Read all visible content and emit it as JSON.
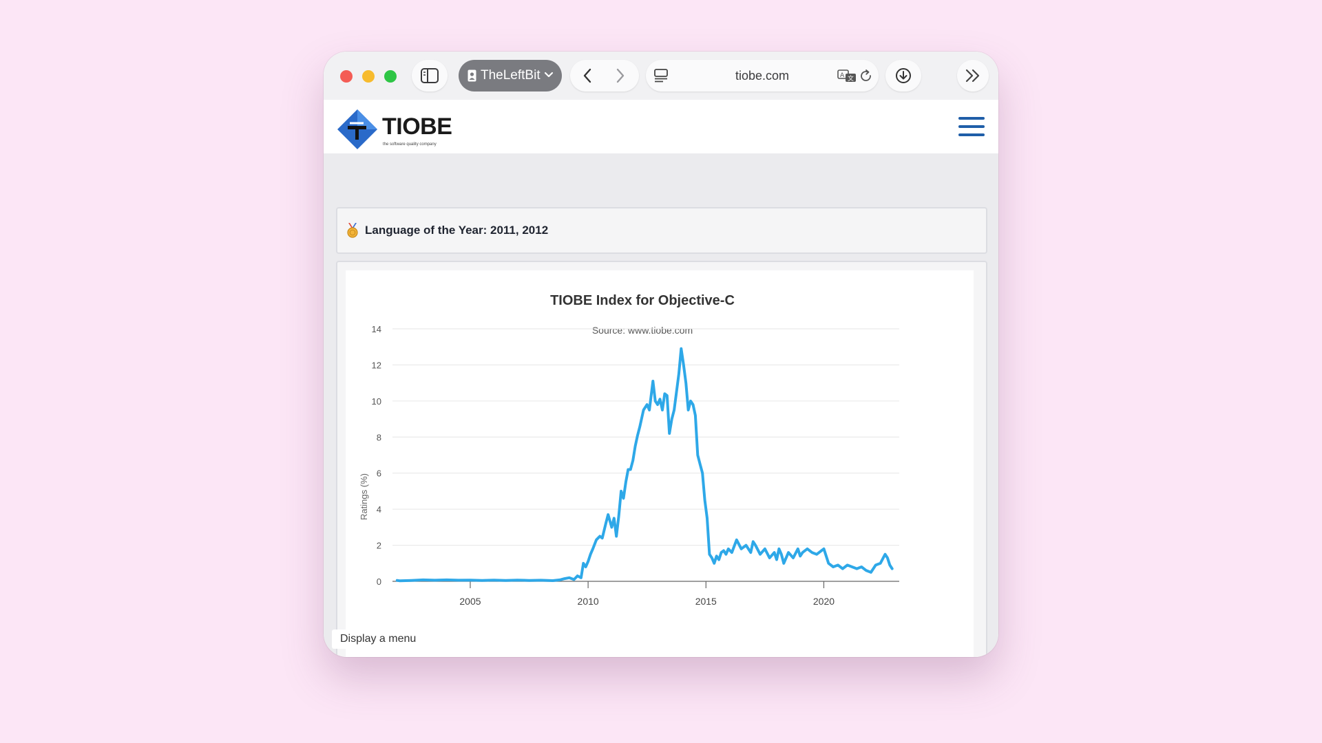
{
  "browser": {
    "profile_name": "TheLeftBit",
    "address": "tiobe.com"
  },
  "site": {
    "logo_text": "TIOBE",
    "logo_tagline": "the software quality company"
  },
  "award": {
    "text": "Language of the Year: 2011, 2012"
  },
  "tooltip": "Display a menu",
  "chart_data": {
    "type": "line",
    "title": "TIOBE Index for Objective-C",
    "subtitle": "Source: www.tiobe.com",
    "xlabel": "",
    "ylabel": "Ratings (%)",
    "xlim": [
      2001.7,
      2023.2
    ],
    "ylim": [
      0,
      14
    ],
    "yticks": [
      0,
      2,
      4,
      6,
      8,
      10,
      12,
      14
    ],
    "xticks": [
      2005,
      2010,
      2015,
      2020
    ],
    "grid": true,
    "series": [
      {
        "name": "",
        "color": "#2ea8e8",
        "x": [
          2001.9,
          2002.0,
          2002.5,
          2003.0,
          2003.5,
          2004.0,
          2004.5,
          2005.0,
          2005.5,
          2006.0,
          2006.5,
          2007.0,
          2007.5,
          2008.0,
          2008.5,
          2008.8,
          2009.0,
          2009.2,
          2009.4,
          2009.55,
          2009.7,
          2009.8,
          2009.9,
          2010.0,
          2010.1,
          2010.2,
          2010.35,
          2010.5,
          2010.6,
          2010.75,
          2010.85,
          2011.0,
          2011.1,
          2011.2,
          2011.3,
          2011.4,
          2011.5,
          2011.6,
          2011.7,
          2011.8,
          2011.9,
          2012.0,
          2012.1,
          2012.2,
          2012.35,
          2012.5,
          2012.6,
          2012.75,
          2012.85,
          2012.95,
          2013.05,
          2013.15,
          2013.25,
          2013.35,
          2013.45,
          2013.55,
          2013.65,
          2013.75,
          2013.85,
          2013.95,
          2014.05,
          2014.15,
          2014.25,
          2014.35,
          2014.45,
          2014.55,
          2014.65,
          2014.75,
          2014.85,
          2014.95,
          2015.05,
          2015.15,
          2015.25,
          2015.35,
          2015.45,
          2015.55,
          2015.65,
          2015.75,
          2015.85,
          2015.95,
          2016.1,
          2016.3,
          2016.5,
          2016.7,
          2016.9,
          2017.0,
          2017.1,
          2017.3,
          2017.5,
          2017.7,
          2017.9,
          2018.0,
          2018.1,
          2018.2,
          2018.3,
          2018.5,
          2018.7,
          2018.9,
          2019.0,
          2019.1,
          2019.3,
          2019.5,
          2019.7,
          2019.9,
          2020.0,
          2020.1,
          2020.2,
          2020.4,
          2020.6,
          2020.8,
          2021.0,
          2021.2,
          2021.4,
          2021.6,
          2021.8,
          2022.0,
          2022.2,
          2022.4,
          2022.6,
          2022.7,
          2022.8,
          2022.9
        ],
        "values": [
          0.05,
          0.03,
          0.05,
          0.08,
          0.06,
          0.08,
          0.06,
          0.07,
          0.05,
          0.07,
          0.05,
          0.07,
          0.05,
          0.06,
          0.04,
          0.08,
          0.15,
          0.2,
          0.1,
          0.3,
          0.2,
          1.0,
          0.8,
          1.1,
          1.5,
          1.8,
          2.3,
          2.5,
          2.4,
          3.2,
          3.7,
          3.0,
          3.5,
          2.5,
          3.6,
          5.0,
          4.6,
          5.5,
          6.2,
          6.2,
          6.7,
          7.5,
          8.1,
          8.6,
          9.5,
          9.8,
          9.5,
          11.1,
          10.0,
          9.8,
          10.1,
          9.5,
          10.4,
          10.3,
          8.2,
          9.0,
          9.5,
          10.5,
          11.5,
          12.9,
          12.0,
          11.0,
          9.5,
          10.0,
          9.8,
          9.2,
          7.0,
          6.5,
          6.0,
          4.5,
          3.5,
          1.5,
          1.3,
          1.0,
          1.4,
          1.2,
          1.6,
          1.7,
          1.5,
          1.8,
          1.6,
          2.3,
          1.8,
          2.0,
          1.6,
          2.2,
          2.0,
          1.5,
          1.8,
          1.3,
          1.6,
          1.2,
          1.8,
          1.5,
          1.0,
          1.6,
          1.3,
          1.8,
          1.4,
          1.6,
          1.8,
          1.6,
          1.5,
          1.7,
          1.8,
          1.4,
          1.0,
          0.8,
          0.9,
          0.7,
          0.9,
          0.8,
          0.7,
          0.8,
          0.6,
          0.5,
          0.9,
          1.0,
          1.5,
          1.3,
          0.9,
          0.7
        ]
      }
    ]
  }
}
